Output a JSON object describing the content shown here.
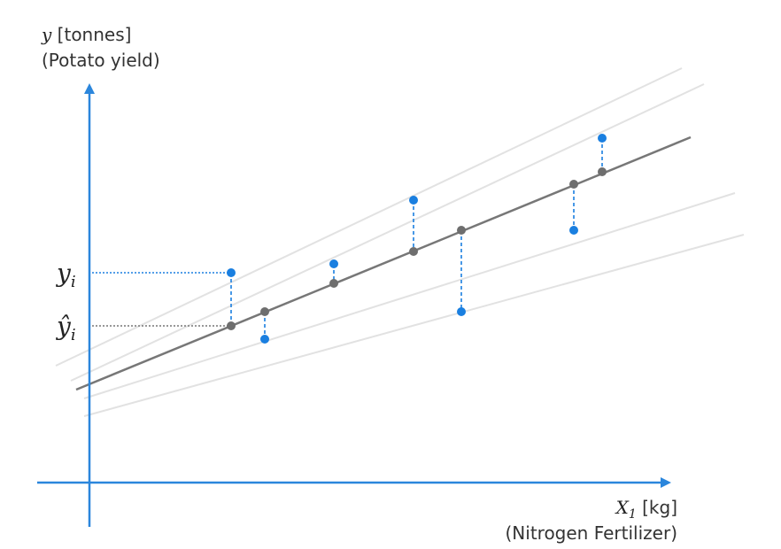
{
  "y_axis": {
    "symbol": "y",
    "unit": "[tonnes]",
    "label": "(Potato yield)"
  },
  "x_axis": {
    "symbol": "X",
    "subscript": "1",
    "unit": "[kg]",
    "label": "(Nitrogen Fertilizer)"
  },
  "markers": [
    {
      "symbol": "y",
      "subscript": "i"
    },
    {
      "symbol": "ŷ",
      "subscript": "i"
    }
  ]
}
